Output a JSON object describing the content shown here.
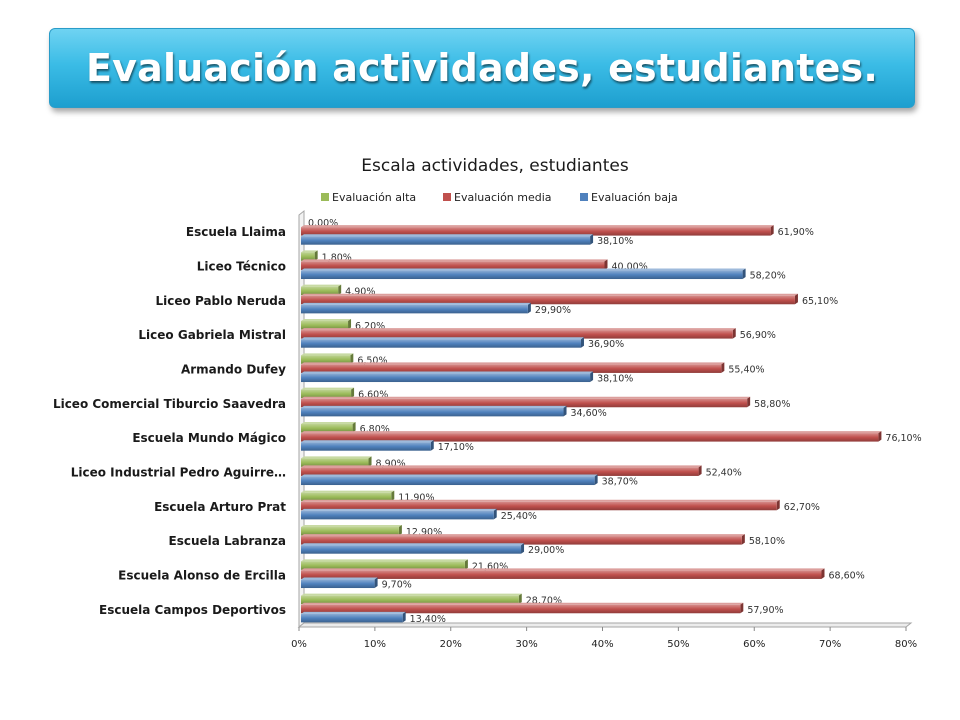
{
  "slide": {
    "title": "Evaluación actividades, estudiantes."
  },
  "colors": {
    "alta": "#9bbb59",
    "media": "#c0504d",
    "baja": "#4f81bd",
    "banner": "#2fb4e0"
  },
  "chart_data": {
    "type": "bar",
    "orientation": "horizontal",
    "title": "Escala actividades, estudiantes",
    "legend_position": "top",
    "xlim": [
      0,
      80
    ],
    "xticks": [
      "0%",
      "10%",
      "20%",
      "30%",
      "40%",
      "50%",
      "60%",
      "70%",
      "80%"
    ],
    "categories": [
      "Escuela Llaima",
      "Liceo Técnico",
      "Liceo Pablo Neruda",
      "Liceo Gabriela Mistral",
      "Armando Dufey",
      "Liceo Comercial Tiburcio Saavedra",
      "Escuela Mundo Mágico",
      "Liceo Industrial Pedro Aguirre…",
      "Escuela Arturo Prat",
      "Escuela Labranza",
      "Escuela Alonso de Ercilla",
      "Escuela Campos Deportivos"
    ],
    "series": [
      {
        "name": "Evaluación alta",
        "key": "alta",
        "values": [
          0.0,
          1.8,
          4.9,
          6.2,
          6.5,
          6.6,
          6.8,
          8.9,
          11.9,
          12.9,
          21.6,
          28.7
        ],
        "labels": [
          "0,00%",
          "1,80%",
          "4,90%",
          "6,20%",
          "6,50%",
          "6,60%",
          "6,80%",
          "8,90%",
          "11,90%",
          "12,90%",
          "21,60%",
          "28,70%"
        ]
      },
      {
        "name": "Evaluación media",
        "key": "media",
        "values": [
          61.9,
          40.0,
          65.1,
          56.9,
          55.4,
          58.8,
          76.1,
          52.4,
          62.7,
          58.1,
          68.6,
          57.9
        ],
        "labels": [
          "61,90%",
          "40,00%",
          "65,10%",
          "56,90%",
          "55,40%",
          "58,80%",
          "76,10%",
          "52,40%",
          "62,70%",
          "58,10%",
          "68,60%",
          "57,90%"
        ]
      },
      {
        "name": "Evaluación baja",
        "key": "baja",
        "values": [
          38.1,
          58.2,
          29.9,
          36.9,
          38.1,
          34.6,
          17.1,
          38.7,
          25.4,
          29.0,
          9.7,
          13.4
        ],
        "labels": [
          "38,10%",
          "58,20%",
          "29,90%",
          "36,90%",
          "38,10%",
          "34,60%",
          "17,10%",
          "38,70%",
          "25,40%",
          "29,00%",
          "9,70%",
          "13,40%"
        ]
      }
    ]
  }
}
